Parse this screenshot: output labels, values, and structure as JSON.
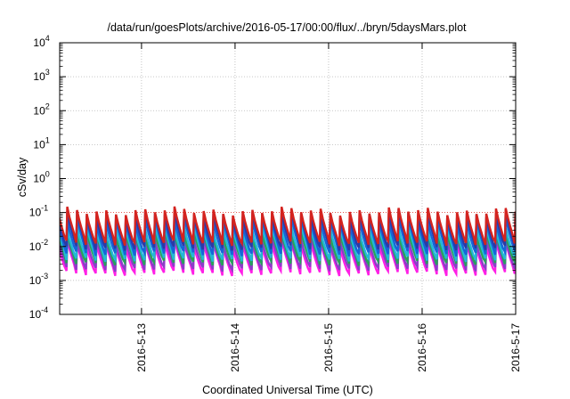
{
  "chart_data": {
    "type": "line",
    "title": "/data/run/goesPlots/archive/2016-05-17/00:00/flux/../bryn/5daysMars.plot",
    "xlabel": "Coordinated Universal Time (UTC)",
    "ylabel": "cSv/day",
    "y_scale": "log",
    "ylim": [
      0.0001,
      10000
    ],
    "xlim": [
      "2016-05-12 03:00",
      "2016-05-17 00:00"
    ],
    "y_ticks": [
      {
        "base": "10",
        "exp": "-4",
        "value": 0.0001
      },
      {
        "base": "10",
        "exp": "-3",
        "value": 0.001
      },
      {
        "base": "10",
        "exp": "-2",
        "value": 0.01
      },
      {
        "base": "10",
        "exp": "-1",
        "value": 0.1
      },
      {
        "base": "10",
        "exp": "0",
        "value": 1
      },
      {
        "base": "10",
        "exp": "1",
        "value": 10
      },
      {
        "base": "10",
        "exp": "2",
        "value": 100
      },
      {
        "base": "10",
        "exp": "3",
        "value": 1000
      },
      {
        "base": "10",
        "exp": "4",
        "value": 10000
      }
    ],
    "x_ticks": [
      "2016-5-13",
      "2016-5-14",
      "2016-5-15",
      "2016-5-16",
      "2016-5-17"
    ],
    "grid": true,
    "reference_line": {
      "value": 0.1,
      "color": "#e8322a"
    },
    "cycle_hours": 2.5,
    "series": [
      {
        "color": "#d4231f",
        "peak": 0.11,
        "trough": 0.0125
      },
      {
        "color": "#2b3aa8",
        "peak": 0.09,
        "trough": 0.009
      },
      {
        "color": "#1565d8",
        "peak": 0.06,
        "trough": 0.0062
      },
      {
        "color": "#22b8d8",
        "peak": 0.035,
        "trough": 0.0042
      },
      {
        "color": "#27a35a",
        "peak": 0.024,
        "trough": 0.0032
      },
      {
        "color": "#8a3fc7",
        "peak": 0.016,
        "trough": 0.0022
      },
      {
        "color": "#ff1fe6",
        "peak": 0.012,
        "trough": 0.0016
      }
    ]
  }
}
